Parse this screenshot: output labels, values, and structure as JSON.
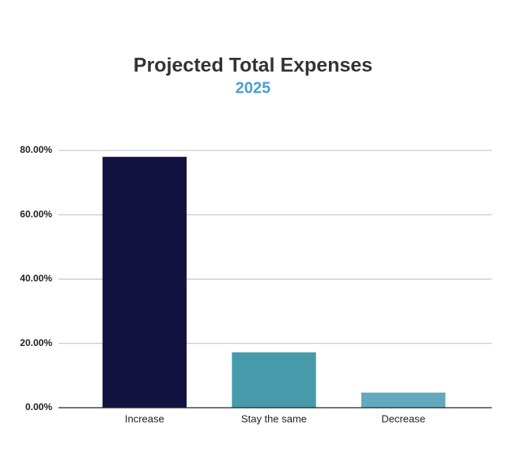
{
  "chart_data": {
    "type": "bar",
    "title": "Projected Total Expenses",
    "subtitle": "2025",
    "categories": [
      "Increase",
      "Stay the same",
      "Decrease"
    ],
    "values": [
      78.0,
      17.2,
      4.7
    ],
    "colors": [
      "#131342",
      "#469aaa",
      "#64a9bb"
    ],
    "ylim": [
      0,
      80
    ],
    "yticks": [
      {
        "value": 0,
        "label": "0.00%"
      },
      {
        "value": 20,
        "label": "20.00%"
      },
      {
        "value": 40,
        "label": "40.00%"
      },
      {
        "value": 60,
        "label": "60.00%"
      },
      {
        "value": 80,
        "label": "80.00%"
      }
    ],
    "grid": true
  }
}
